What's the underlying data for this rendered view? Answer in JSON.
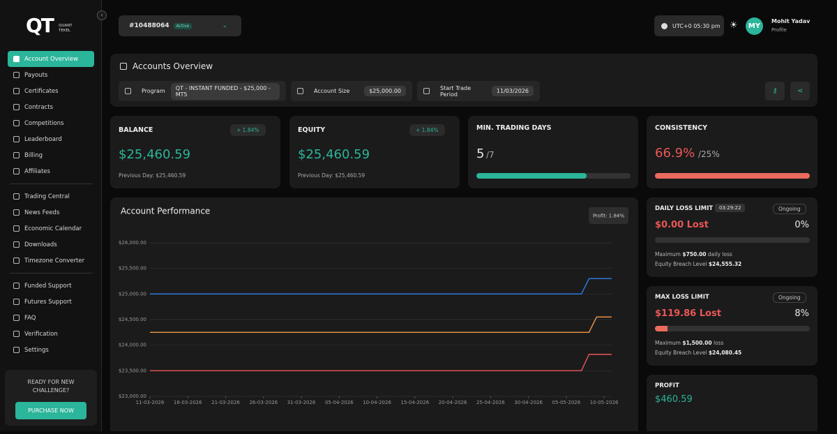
{
  "logo": {
    "mark": "QT",
    "line1": "QUANT",
    "line2": "TEKEL"
  },
  "nav": {
    "groups": [
      [
        "Account Overview",
        "Payouts",
        "Certificates",
        "Contracts",
        "Competitions",
        "Leaderboard",
        "Billing",
        "Affiliates"
      ],
      [
        "Trading Central",
        "News Feeds",
        "Economic Calendar",
        "Downloads",
        "Timezone Converter"
      ],
      [
        "Funded Support",
        "Futures Support",
        "FAQ",
        "Verification",
        "Settings"
      ]
    ],
    "active": "Account Overview"
  },
  "promo": {
    "text": "READY FOR NEW CHALLENGE?",
    "button": "PURCHASE NOW"
  },
  "header": {
    "account": "#10488064",
    "status": "Active",
    "time": "UTC+0 05:30 pm",
    "avatar": "MY",
    "user": "Mohit Yadav",
    "user_sub": "Profile"
  },
  "overview": {
    "title": "Accounts Overview",
    "program_label": "Program",
    "program": "QT - INSTANT FUNDED - $25,000 - MT5",
    "size_label": "Account Size",
    "size": "$25,000.00",
    "start_label": "Start Trade Period",
    "start": "11/03/2026"
  },
  "cards": {
    "balance": {
      "label": "BALANCE",
      "change": "+ 1.84%",
      "value": "$25,460.59",
      "note": "Previous Day: $25,460.59"
    },
    "equity": {
      "label": "EQUITY",
      "change": "+ 1.84%",
      "value": "$25,460.59",
      "note": "Previous Day: $25,460.59"
    },
    "days": {
      "label": "MIN. TRADING DAYS",
      "days": 5,
      "required": {
        "value": 7,
        "label": "/7"
      }
    },
    "consistency": {
      "label": "CONSISTENCY",
      "value": "66.9%",
      "limit": "/25%"
    },
    "daily": {
      "label": "DAILY LOSS LIMIT",
      "timer": "03:29:22",
      "status": "Ongoing",
      "lost": "$0.00 Lost",
      "percent": {
        "value": 0,
        "label": "0%"
      },
      "max_pre": "Maximum",
      "max": "$750.00",
      "max_post": "daily loss",
      "breach_label": "Equity Breach Level",
      "breach": "$24,555.32"
    },
    "maxloss": {
      "label": "MAX LOSS LIMIT",
      "status": "Ongoing",
      "lost": "$119.86 Lost",
      "percent": {
        "value": 8,
        "label": "8%"
      },
      "max_pre": "Maximum",
      "max": "$1,500.00",
      "max_post": "loss",
      "breach_label": "Equity Breach Level",
      "breach": "$24,080.45"
    },
    "profit": {
      "label": "PROFIT",
      "value": "$460.59"
    }
  },
  "chart_data": {
    "type": "line",
    "title": "Account Performance",
    "badge": "Profit: 1.84%",
    "xlim": [
      "11-03-2026",
      "11-05-2026"
    ],
    "xticks": [
      "11-03-2026",
      "16-03-2026",
      "21-03-2026",
      "26-03-2026",
      "31-03-2026",
      "05-04-2026",
      "10-04-2026",
      "15-04-2026",
      "20-04-2026",
      "25-04-2026",
      "30-04-2026",
      "05-05-2026",
      "10-05-2026"
    ],
    "ylim": [
      23000,
      26000
    ],
    "yticks": [
      {
        "value": 23000,
        "label": "$23,000.00"
      },
      {
        "value": 23500,
        "label": "$23,500.00"
      },
      {
        "value": 24000,
        "label": "$24,000.00"
      },
      {
        "value": 24500,
        "label": "$24,500.00"
      },
      {
        "value": 25000,
        "label": "$25,000.00"
      },
      {
        "value": 25500,
        "label": "$25,500.00"
      },
      {
        "value": 26000,
        "label": "$26,000.00"
      }
    ],
    "grid": true,
    "series": [
      {
        "color": "#2f80ed",
        "x": [
          "11-03-2026",
          "07-05-2026",
          "08-05-2026",
          "11-05-2026"
        ],
        "values": [
          25000,
          25000,
          25300,
          25300
        ]
      },
      {
        "color": "#f2994a",
        "x": [
          "11-03-2026",
          "08-05-2026",
          "09-05-2026",
          "11-05-2026"
        ],
        "values": [
          24250,
          24250,
          24550,
          24550
        ]
      },
      {
        "color": "#eb5757",
        "x": [
          "11-03-2026",
          "07-05-2026",
          "08-05-2026",
          "11-05-2026"
        ],
        "values": [
          23500,
          23500,
          23820,
          23820
        ]
      }
    ]
  }
}
